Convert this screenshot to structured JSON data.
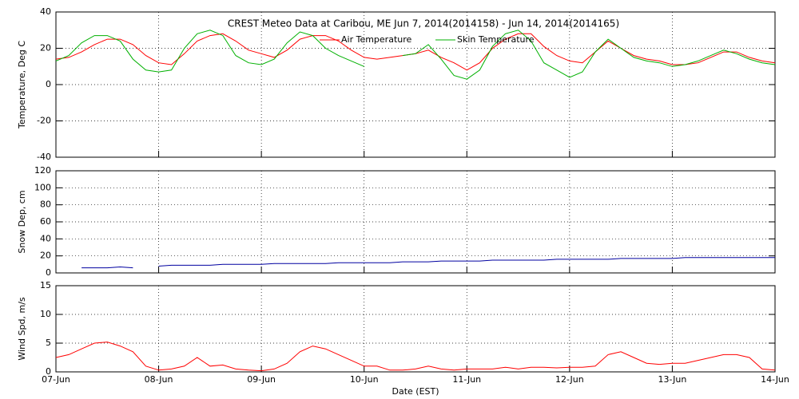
{
  "chart_data": [
    {
      "type": "line",
      "title": "CREST Meteo Data at Caribou, ME   Jun  7, 2014(2014158) - Jun 14, 2014(2014165)",
      "ylabel": "Temperature, Deg C",
      "ylim": [
        -40,
        40
      ],
      "yticks": [
        -40,
        -20,
        0,
        20,
        40
      ],
      "xlim": [
        0,
        7
      ],
      "xticks": [
        0,
        1,
        2,
        3,
        4,
        5,
        6,
        7
      ],
      "grid": true,
      "legend": "top",
      "x": [
        0,
        0.125,
        0.25,
        0.375,
        0.5,
        0.625,
        0.75,
        0.875,
        1,
        1.125,
        1.25,
        1.375,
        1.5,
        1.625,
        1.75,
        1.875,
        2,
        2.125,
        2.25,
        2.375,
        2.5,
        2.625,
        2.75,
        2.875,
        3,
        3.125,
        3.25,
        3.375,
        3.5,
        3.625,
        3.75,
        3.875,
        4,
        4.125,
        4.25,
        4.375,
        4.5,
        4.625,
        4.75,
        4.875,
        5,
        5.125,
        5.25,
        5.375,
        5.5,
        5.625,
        5.75,
        5.875,
        6,
        6.125,
        6.25,
        6.375,
        6.5,
        6.625,
        6.75,
        6.875,
        7
      ],
      "series": [
        {
          "name": "Air Temperature",
          "color": "#ff0000",
          "values": [
            14,
            15,
            18,
            22,
            25,
            25,
            22,
            16,
            12,
            11,
            17,
            24,
            27,
            28,
            24,
            19,
            17,
            15,
            19,
            25,
            27,
            27,
            24,
            19,
            15,
            14,
            15,
            16,
            17,
            19,
            15,
            12,
            8,
            12,
            20,
            25,
            28,
            28,
            21,
            16,
            13,
            12,
            18,
            24,
            20,
            16,
            14,
            13,
            11,
            11,
            12,
            15,
            18,
            18,
            15,
            13,
            12
          ]
        },
        {
          "name": "Skin Temperature",
          "color": "#00b000",
          "values": [
            13,
            16,
            23,
            27,
            27,
            24,
            14,
            8,
            7,
            8,
            20,
            28,
            30,
            27,
            16,
            12,
            11,
            14,
            23,
            29,
            27,
            20,
            16,
            13,
            10,
            null,
            null,
            16,
            17,
            22,
            14,
            5,
            3,
            8,
            21,
            28,
            30,
            24,
            12,
            8,
            4,
            7,
            18,
            25,
            20,
            15,
            13,
            12,
            10,
            11,
            13,
            16,
            19,
            17,
            14,
            12,
            11
          ]
        }
      ]
    },
    {
      "type": "line",
      "ylabel": "Snow Dep, cm",
      "ylim": [
        0,
        120
      ],
      "yticks": [
        0,
        20,
        40,
        60,
        80,
        100,
        120
      ],
      "xlim": [
        0,
        7
      ],
      "xticks": [
        0,
        1,
        2,
        3,
        4,
        5,
        6,
        7
      ],
      "grid": true,
      "x": [
        0,
        0.125,
        0.25,
        0.375,
        0.5,
        0.625,
        0.75,
        0.875,
        1,
        1.125,
        1.25,
        1.375,
        1.5,
        1.625,
        1.75,
        1.875,
        2,
        2.125,
        2.25,
        2.375,
        2.5,
        2.625,
        2.75,
        2.875,
        3,
        3.125,
        3.25,
        3.375,
        3.5,
        3.625,
        3.75,
        3.875,
        4,
        4.125,
        4.25,
        4.375,
        4.5,
        4.625,
        4.75,
        4.875,
        5,
        5.125,
        5.25,
        5.375,
        5.5,
        5.625,
        5.75,
        5.875,
        6,
        6.125,
        6.25,
        6.375,
        6.5,
        6.625,
        6.75,
        6.875,
        7
      ],
      "series": [
        {
          "color": "#0000a0",
          "values": [
            null,
            null,
            6,
            6,
            6,
            7,
            6,
            null,
            8,
            9,
            9,
            9,
            9,
            10,
            10,
            10,
            10,
            11,
            11,
            11,
            11,
            11,
            12,
            12,
            12,
            12,
            12,
            13,
            13,
            13,
            14,
            14,
            14,
            14,
            15,
            15,
            15,
            15,
            15,
            16,
            16,
            16,
            16,
            16,
            17,
            17,
            17,
            17,
            17,
            18,
            18,
            18,
            18,
            18,
            18,
            18,
            18
          ]
        }
      ]
    },
    {
      "type": "line",
      "ylabel": "Wind Spd, m/s",
      "xlabel": "Date (EST)",
      "ylim": [
        0,
        15
      ],
      "yticks": [
        0,
        5,
        10,
        15
      ],
      "xlim": [
        0,
        7
      ],
      "grid": true,
      "xticks": [
        {
          "value": 0,
          "label": "07-Jun"
        },
        {
          "value": 1,
          "label": "08-Jun"
        },
        {
          "value": 2,
          "label": "09-Jun"
        },
        {
          "value": 3,
          "label": "10-Jun"
        },
        {
          "value": 4,
          "label": "11-Jun"
        },
        {
          "value": 5,
          "label": "12-Jun"
        },
        {
          "value": 6,
          "label": "13-Jun"
        },
        {
          "value": 7,
          "label": "14-Jun"
        }
      ],
      "x": [
        0,
        0.125,
        0.25,
        0.375,
        0.5,
        0.625,
        0.75,
        0.875,
        1,
        1.125,
        1.25,
        1.375,
        1.5,
        1.625,
        1.75,
        1.875,
        2,
        2.125,
        2.25,
        2.375,
        2.5,
        2.625,
        2.75,
        2.875,
        3,
        3.125,
        3.25,
        3.375,
        3.5,
        3.625,
        3.75,
        3.875,
        4,
        4.125,
        4.25,
        4.375,
        4.5,
        4.625,
        4.75,
        4.875,
        5,
        5.125,
        5.25,
        5.375,
        5.5,
        5.625,
        5.75,
        5.875,
        6,
        6.125,
        6.25,
        6.375,
        6.5,
        6.625,
        6.75,
        6.875,
        7
      ],
      "series": [
        {
          "color": "#ff0000",
          "values": [
            2.5,
            3,
            4,
            5,
            5.2,
            4.5,
            3.5,
            1,
            0.3,
            0.5,
            1,
            2.5,
            1,
            1.2,
            0.5,
            0.3,
            0.2,
            0.5,
            1.5,
            3.5,
            4.5,
            4,
            3,
            2,
            1,
            1,
            0.3,
            0.3,
            0.5,
            1,
            0.5,
            0.3,
            0.5,
            0.5,
            0.5,
            0.8,
            0.5,
            0.8,
            0.8,
            0.7,
            0.8,
            0.8,
            1,
            3,
            3.5,
            2.5,
            1.5,
            1.3,
            1.5,
            1.5,
            2,
            2.5,
            3,
            3,
            2.5,
            0.5,
            0.3
          ]
        }
      ]
    }
  ]
}
